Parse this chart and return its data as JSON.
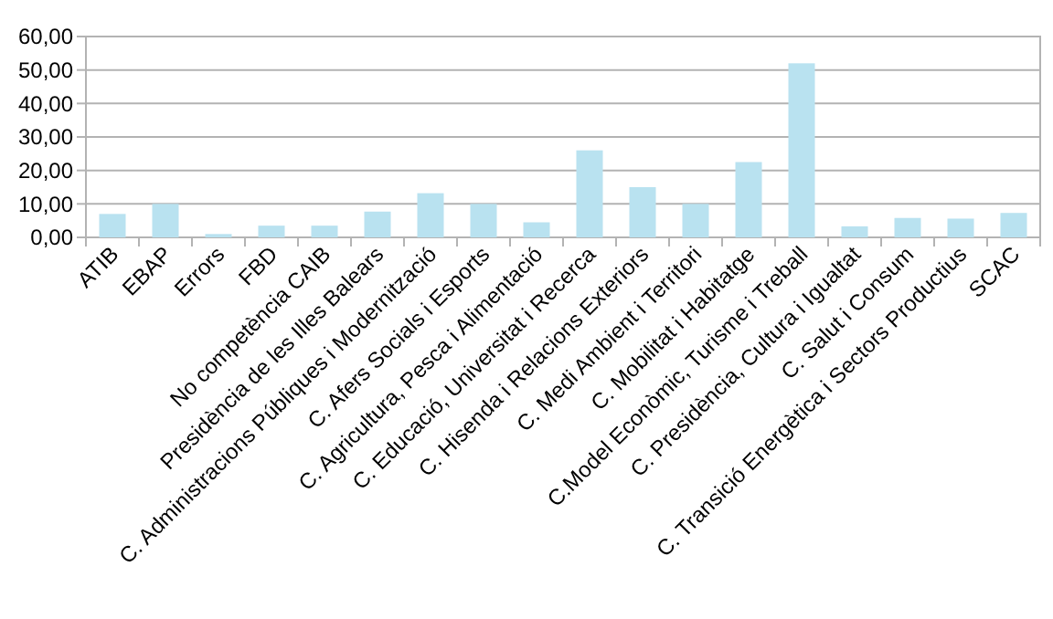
{
  "chart_data": {
    "type": "bar",
    "categories": [
      "ATIB",
      "EBAP",
      "Errors",
      "FBD",
      "No competència CAIB",
      "Presidència de les Illes Balears",
      "C. Administracions Públiques i Modernització",
      "C. Afers Socials i Esports",
      "C. Agricultura, Pesca i Alimentació",
      "C. Educació, Universitat i Recerca",
      "C. Hisenda i Relacions Exteriors",
      "C. Medi Ambient i Territori",
      "C. Mobilitat i Habitatge",
      "C.Model Econòmic, Turisme i Treball",
      "C. Presidència, Cultura i Igualtat",
      "C. Salut i Consum",
      "C. Transició Energètica i Sectors Productius",
      "SCAC"
    ],
    "values": [
      7,
      10,
      1,
      3.5,
      3.5,
      7.7,
      13.2,
      10,
      4.5,
      26,
      15,
      10,
      22.5,
      52,
      3.3,
      5.8,
      5.6,
      7.3
    ],
    "color": "#b9e2f0",
    "ylim": [
      0,
      60
    ],
    "yticks": [
      {
        "value": 0,
        "label": "0,00"
      },
      {
        "value": 10,
        "label": "10,00"
      },
      {
        "value": 20,
        "label": "20,00"
      },
      {
        "value": 30,
        "label": "30,00"
      },
      {
        "value": 40,
        "label": "40,00"
      },
      {
        "value": 50,
        "label": "50,00"
      },
      {
        "value": 60,
        "label": "60,00"
      }
    ],
    "grid": "y"
  }
}
